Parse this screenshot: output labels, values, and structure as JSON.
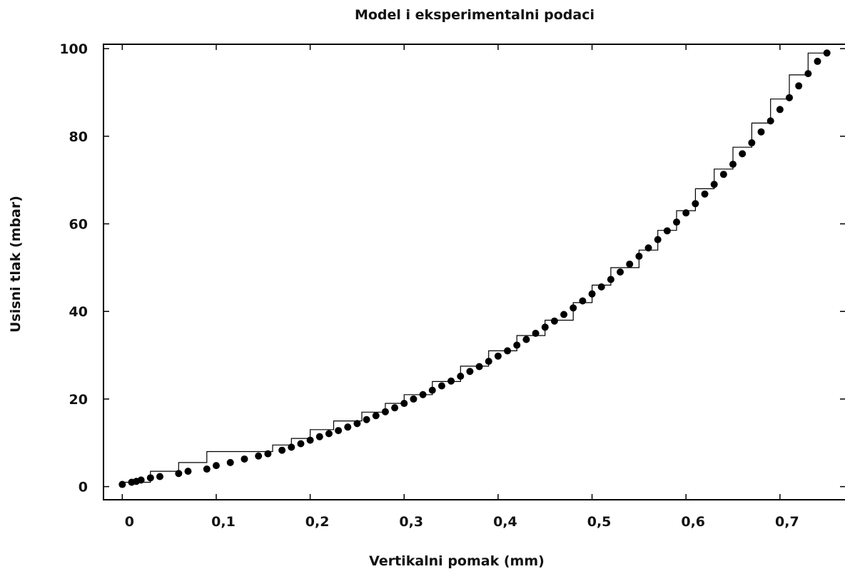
{
  "chart_data": {
    "type": "scatter",
    "title": "Model i eksperimentalni podaci",
    "xlabel": "Vertikalni pomak (mm)",
    "ylabel": "Usisni tlak (mbar)",
    "xlim": [
      -0.02,
      0.77
    ],
    "ylim": [
      -3,
      101
    ],
    "x_ticks": [
      {
        "value": 0,
        "label": "0"
      },
      {
        "value": 0.1,
        "label": "0,1"
      },
      {
        "value": 0.2,
        "label": "0,2"
      },
      {
        "value": 0.3,
        "label": "0,3"
      },
      {
        "value": 0.4,
        "label": "0,4"
      },
      {
        "value": 0.5,
        "label": "0,5"
      },
      {
        "value": 0.6,
        "label": "0,6"
      },
      {
        "value": 0.7,
        "label": "0,7"
      }
    ],
    "y_ticks": [
      {
        "value": 0,
        "label": "0"
      },
      {
        "value": 20,
        "label": "20"
      },
      {
        "value": 40,
        "label": "40"
      },
      {
        "value": 60,
        "label": "60"
      },
      {
        "value": 80,
        "label": "80"
      },
      {
        "value": 100,
        "label": "100"
      }
    ],
    "grid": false,
    "legend": "none",
    "series": [
      {
        "style": "points",
        "color": "#000000",
        "x": [
          0.0,
          0.01,
          0.015,
          0.02,
          0.03,
          0.04,
          0.06,
          0.07,
          0.09,
          0.1,
          0.115,
          0.13,
          0.145,
          0.155,
          0.17,
          0.18,
          0.19,
          0.2,
          0.21,
          0.22,
          0.23,
          0.24,
          0.25,
          0.26,
          0.27,
          0.28,
          0.29,
          0.3,
          0.31,
          0.32,
          0.33,
          0.34,
          0.35,
          0.36,
          0.37,
          0.38,
          0.39,
          0.4,
          0.41,
          0.42,
          0.43,
          0.44,
          0.45,
          0.46,
          0.47,
          0.48,
          0.49,
          0.5,
          0.51,
          0.52,
          0.53,
          0.54,
          0.55,
          0.56,
          0.57,
          0.58,
          0.59,
          0.6,
          0.61,
          0.62,
          0.63,
          0.64,
          0.65,
          0.66,
          0.67,
          0.68,
          0.69,
          0.7,
          0.71,
          0.72,
          0.73,
          0.74,
          0.75
        ],
        "y": [
          0.5,
          1.0,
          1.2,
          1.5,
          2.0,
          2.3,
          3.0,
          3.5,
          4.0,
          4.8,
          5.5,
          6.3,
          7.0,
          7.5,
          8.3,
          9.0,
          9.8,
          10.6,
          11.4,
          12.1,
          12.8,
          13.6,
          14.4,
          15.3,
          16.2,
          17.1,
          18.0,
          19.0,
          20.0,
          21.0,
          22.0,
          23.0,
          24.1,
          25.2,
          26.3,
          27.4,
          28.6,
          29.8,
          31.0,
          32.3,
          33.6,
          35.0,
          36.4,
          37.8,
          39.3,
          40.8,
          42.4,
          44.0,
          45.6,
          47.3,
          49.0,
          50.8,
          52.6,
          54.5,
          56.4,
          58.4,
          60.4,
          62.5,
          64.6,
          66.8,
          69.0,
          71.3,
          73.6,
          76.0,
          78.5,
          81.0,
          83.5,
          86.1,
          88.8,
          91.5,
          94.3,
          97.1,
          99.0
        ]
      },
      {
        "style": "step",
        "color": "#000000",
        "x": [
          0.0,
          0.03,
          0.03,
          0.06,
          0.06,
          0.09,
          0.09,
          0.13,
          0.13,
          0.16,
          0.16,
          0.18,
          0.18,
          0.2,
          0.2,
          0.225,
          0.225,
          0.255,
          0.255,
          0.28,
          0.28,
          0.3,
          0.3,
          0.33,
          0.33,
          0.36,
          0.36,
          0.39,
          0.39,
          0.42,
          0.42,
          0.45,
          0.45,
          0.48,
          0.48,
          0.5,
          0.5,
          0.52,
          0.52,
          0.55,
          0.55,
          0.57,
          0.57,
          0.59,
          0.59,
          0.61,
          0.61,
          0.63,
          0.63,
          0.65,
          0.65,
          0.67,
          0.67,
          0.69,
          0.69,
          0.71,
          0.71,
          0.73,
          0.73,
          0.75
        ],
        "y": [
          1.0,
          1.0,
          3.5,
          3.5,
          5.5,
          5.5,
          8.0,
          8.0,
          8.0,
          8.0,
          9.5,
          9.5,
          11.0,
          11.0,
          13.0,
          13.0,
          15.0,
          15.0,
          17.0,
          17.0,
          19.0,
          19.0,
          21.0,
          21.0,
          24.0,
          24.0,
          27.5,
          27.5,
          31.0,
          31.0,
          34.5,
          34.5,
          38.0,
          38.0,
          42.0,
          42.0,
          46.0,
          46.0,
          50.0,
          50.0,
          54.0,
          54.0,
          58.5,
          58.5,
          63.0,
          63.0,
          68.0,
          68.0,
          72.5,
          72.5,
          77.5,
          77.5,
          83.0,
          83.0,
          88.5,
          88.5,
          94.0,
          94.0,
          99.0,
          99.0
        ]
      }
    ]
  }
}
